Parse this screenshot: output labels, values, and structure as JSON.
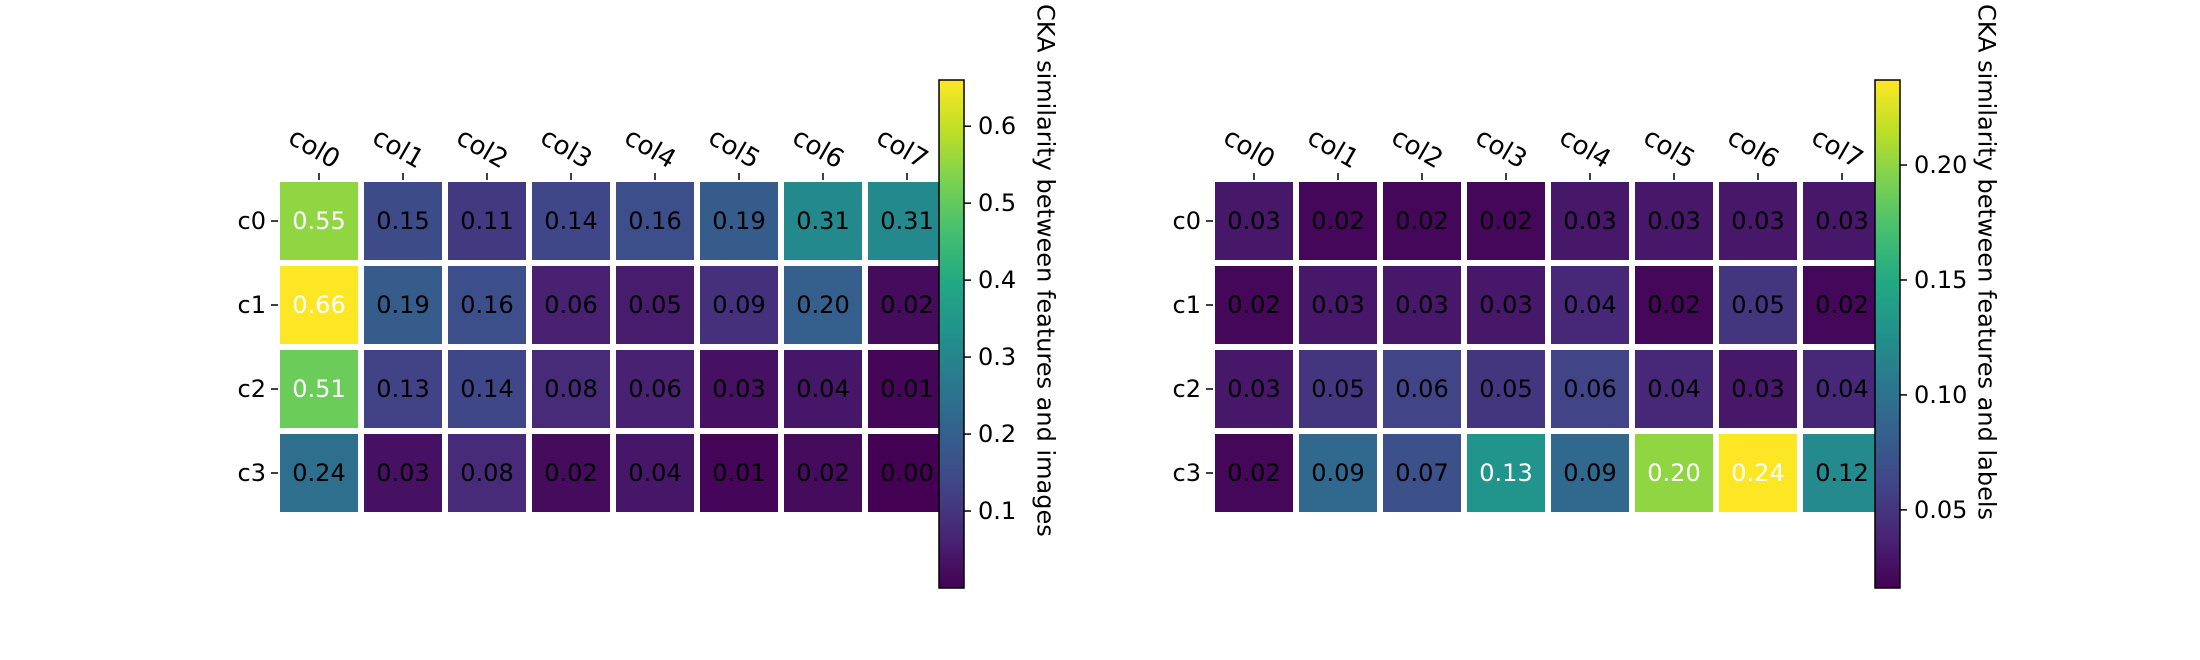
{
  "chart_data": [
    {
      "type": "heatmap",
      "rows": [
        "c0",
        "c1",
        "c2",
        "c3"
      ],
      "columns": [
        "col0",
        "col1",
        "col2",
        "col3",
        "col4",
        "col5",
        "col6",
        "col7"
      ],
      "values": [
        [
          0.55,
          0.15,
          0.11,
          0.14,
          0.16,
          0.19,
          0.31,
          0.31
        ],
        [
          0.66,
          0.19,
          0.16,
          0.06,
          0.05,
          0.09,
          0.2,
          0.02
        ],
        [
          0.51,
          0.13,
          0.14,
          0.08,
          0.06,
          0.03,
          0.04,
          0.01
        ],
        [
          0.24,
          0.03,
          0.08,
          0.02,
          0.04,
          0.01,
          0.02,
          0.0
        ]
      ],
      "colorbar": {
        "label": "CKA similarity between features and images",
        "range": [
          0.0,
          0.66
        ],
        "ticks": [
          0.1,
          0.2,
          0.3,
          0.4,
          0.5,
          0.6
        ],
        "tick_labels": [
          "0.1",
          "0.2",
          "0.3",
          "0.4",
          "0.5",
          "0.6"
        ]
      },
      "colormap": "viridis",
      "annotation_threshold": 0.4
    },
    {
      "type": "heatmap",
      "rows": [
        "c0",
        "c1",
        "c2",
        "c3"
      ],
      "columns": [
        "col0",
        "col1",
        "col2",
        "col3",
        "col4",
        "col5",
        "col6",
        "col7"
      ],
      "values": [
        [
          0.03,
          0.02,
          0.02,
          0.02,
          0.03,
          0.03,
          0.03,
          0.03
        ],
        [
          0.02,
          0.03,
          0.03,
          0.03,
          0.04,
          0.02,
          0.05,
          0.02
        ],
        [
          0.03,
          0.05,
          0.06,
          0.05,
          0.06,
          0.04,
          0.03,
          0.04
        ],
        [
          0.02,
          0.09,
          0.07,
          0.13,
          0.09,
          0.2,
          0.24,
          0.12
        ]
      ],
      "colorbar": {
        "label": "CKA similarity between features and labels",
        "range": [
          0.016,
          0.237
        ],
        "ticks": [
          0.05,
          0.1,
          0.15,
          0.2
        ],
        "tick_labels": [
          "0.05",
          "0.10",
          "0.15",
          "0.20"
        ]
      },
      "colormap": "viridis",
      "annotation_threshold": 0.13
    }
  ]
}
